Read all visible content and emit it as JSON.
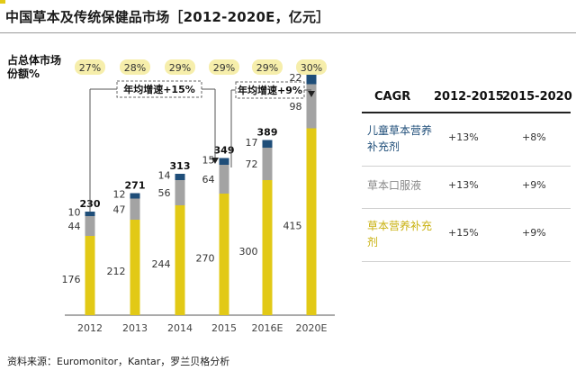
{
  "title": "中国草本及传统保健品市场［2012-2020E，亿元］",
  "share_label": "占总体市场份额%",
  "colors": {
    "accent": "#e2c916",
    "dark_blue": "#1f4e79",
    "gray": "#a3a3a3",
    "yellow": "#e2c916",
    "name_gray": "#888888"
  },
  "chart_data": {
    "type": "bar",
    "stacked": true,
    "title": "中国草本及传统保健品市场［2012-2020E，亿元］",
    "categories": [
      "2012",
      "2013",
      "2014",
      "2015",
      "2016E",
      "2020E"
    ],
    "series": [
      {
        "name": "草本营养补充剂",
        "color": "#e2c916",
        "values": [
          176,
          212,
          244,
          270,
          300,
          415
        ]
      },
      {
        "name": "草本口服液",
        "color": "#a3a3a3",
        "values": [
          44,
          47,
          56,
          64,
          72,
          98
        ]
      },
      {
        "name": "儿童草本营养补充剂",
        "color": "#1f4e79",
        "values": [
          10,
          12,
          14,
          15,
          17,
          22
        ]
      }
    ],
    "totals": [
      230,
      271,
      313,
      349,
      389,
      535
    ],
    "share_of_total": [
      "27%",
      "28%",
      "29%",
      "29%",
      "29%",
      "30%"
    ],
    "ylim": [
      0,
      560
    ],
    "xlabel": "",
    "ylabel": "",
    "annotations": [
      {
        "text": "年均增速+15%",
        "from": "2012",
        "to": "2015"
      },
      {
        "text": "年均增速+9%",
        "from": "2015",
        "to": "2020E"
      }
    ]
  },
  "cagr_table": {
    "headers": [
      "CAGR",
      "2012-2015",
      "2015-2020"
    ],
    "rows": [
      {
        "name": "儿童草本营养补充剂",
        "color": "#1f4e79",
        "v1": "+13%",
        "v2": "+8%"
      },
      {
        "name": "草本口服液",
        "color": "#888888",
        "v1": "+13%",
        "v2": "+9%"
      },
      {
        "name": "草本营养补充剂",
        "color": "#c9b10f",
        "v1": "+15%",
        "v2": "+9%"
      }
    ]
  },
  "source": "资料来源：Euromonitor，Kantar，罗兰贝格分析"
}
